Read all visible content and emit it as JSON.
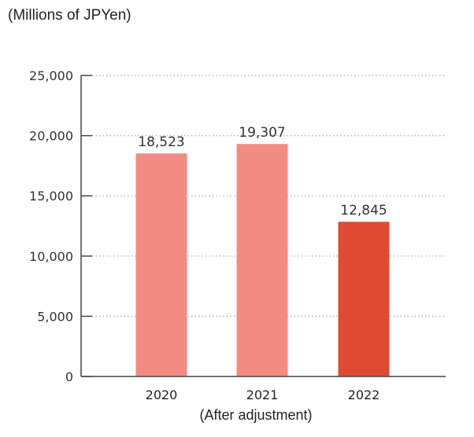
{
  "chart_data": {
    "type": "bar",
    "unit_label": "(Millions of JPYen)",
    "categories": [
      "2020",
      "2021",
      "2022"
    ],
    "values": [
      18523,
      19307,
      12845
    ],
    "value_labels": [
      "18,523",
      "19,307",
      "12,845"
    ],
    "x_note": "(After adjustment)",
    "ylim": [
      0,
      25000
    ],
    "yticks": [
      0,
      5000,
      10000,
      15000,
      20000,
      25000
    ],
    "ytick_labels": [
      "0",
      "5,000",
      "10,000",
      "15,000",
      "20,000",
      "25,000"
    ],
    "grid": true,
    "colors": [
      "#f28b82",
      "#f28b82",
      "#e04a32"
    ],
    "axis_color": "#444444",
    "grid_color": "#aaaaaa"
  }
}
